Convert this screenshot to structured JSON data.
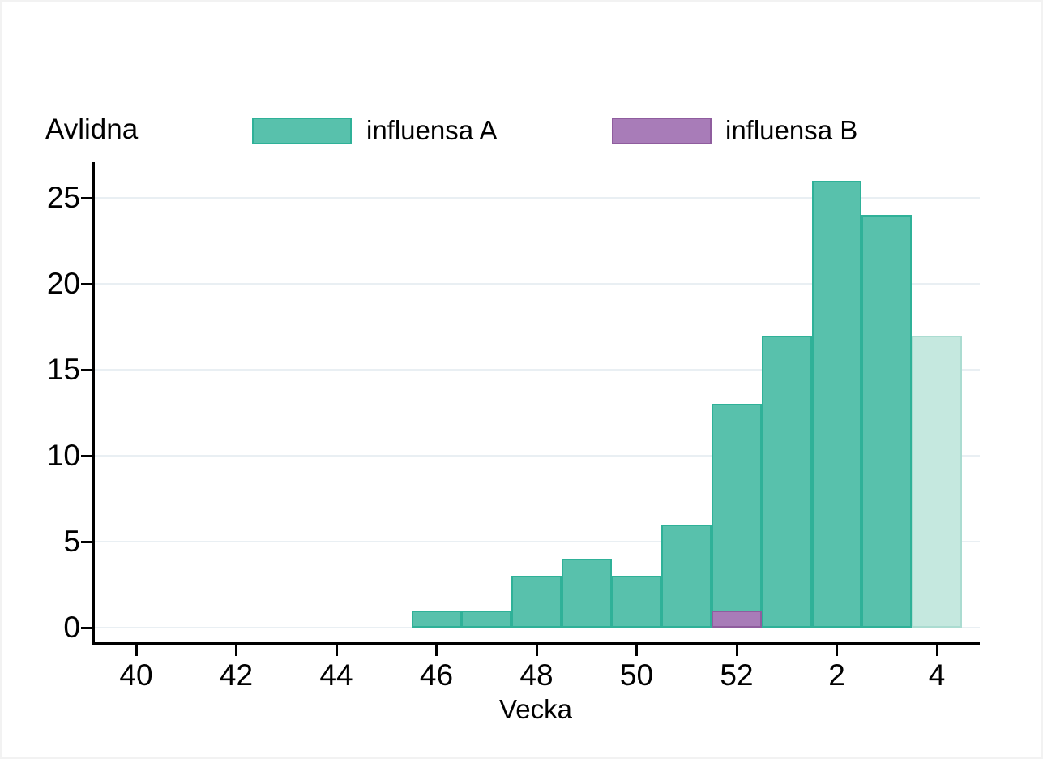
{
  "title": "Avlidna",
  "legend": {
    "items": [
      {
        "label": "influensa A",
        "fill": "#58c1ac",
        "stroke": "#2fb198"
      },
      {
        "label": "influensa B",
        "fill": "#a87cb8",
        "stroke": "#8f5d9e"
      }
    ]
  },
  "chart_data": {
    "type": "bar",
    "title": "Avlidna",
    "xlabel": "Vecka",
    "ylabel": "Avlidna",
    "ylim": [
      0,
      26
    ],
    "grid": true,
    "legend_position": "top",
    "y_ticks": [
      "0",
      "5",
      "10",
      "15",
      "20",
      "25"
    ],
    "x_ticks": [
      {
        "label": "40",
        "t": 0
      },
      {
        "label": "42",
        "t": 2
      },
      {
        "label": "44",
        "t": 4
      },
      {
        "label": "46",
        "t": 6
      },
      {
        "label": "48",
        "t": 8
      },
      {
        "label": "50",
        "t": 10
      },
      {
        "label": "52",
        "t": 12
      },
      {
        "label": "2",
        "t": 14
      },
      {
        "label": "4",
        "t": 16
      }
    ],
    "series": [
      {
        "name": "influensa A",
        "fill": "#58c1ac",
        "stroke": "#2fb198",
        "muted_fill": "#c5e8df",
        "muted_stroke": "#abdcd1",
        "bars": [
          {
            "week": "46",
            "t": 6,
            "value": 1
          },
          {
            "week": "47",
            "t": 7,
            "value": 1
          },
          {
            "week": "48",
            "t": 8,
            "value": 3
          },
          {
            "week": "49",
            "t": 9,
            "value": 4
          },
          {
            "week": "50",
            "t": 10,
            "value": 3
          },
          {
            "week": "51",
            "t": 11,
            "value": 6
          },
          {
            "week": "52",
            "t": 12,
            "value": 13
          },
          {
            "week": "1",
            "t": 13,
            "value": 17
          },
          {
            "week": "2",
            "t": 14,
            "value": 26
          },
          {
            "week": "3",
            "t": 15,
            "value": 24
          },
          {
            "week": "4",
            "t": 16,
            "value": 17,
            "muted": true
          }
        ]
      },
      {
        "name": "influensa B",
        "fill": "#a87cb8",
        "stroke": "#8f5d9e",
        "bars": [
          {
            "week": "52",
            "t": 12,
            "value": 1
          }
        ]
      }
    ],
    "colors": {
      "gridline": "#e9eff3",
      "axis": "#000000",
      "text": "#000000"
    }
  }
}
